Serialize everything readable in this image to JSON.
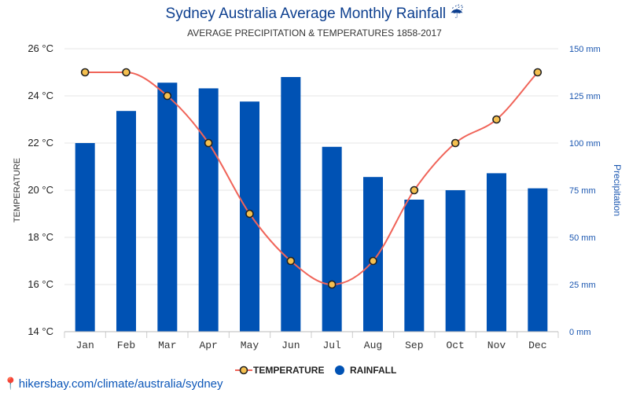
{
  "header": {
    "title": "Sydney Australia Average Monthly Rainfall ☔",
    "subtitle": "AVERAGE PRECIPITATION & TEMPERATURES 1858-2017"
  },
  "footer": {
    "source_text": "hikersbay.com/climate/australia/sydney"
  },
  "colors": {
    "title": "#0d3f8f",
    "bar": "#0052b4",
    "line": "#f06459",
    "marker_fill": "#f5c04f",
    "marker_stroke": "#222222",
    "right_axis": "#1a56b0",
    "grid": "#e6e6e6"
  },
  "chart_data": {
    "type": "bar",
    "title": "Sydney Australia Average Monthly Rainfall ☔",
    "subtitle": "AVERAGE PRECIPITATION & TEMPERATURES 1858-2017",
    "categories": [
      "Jan",
      "Feb",
      "Mar",
      "Apr",
      "May",
      "Jun",
      "Jul",
      "Aug",
      "Sep",
      "Oct",
      "Nov",
      "Dec"
    ],
    "series": [
      {
        "name": "TEMPERATURE",
        "type": "line",
        "axis": "left",
        "values": [
          25,
          25,
          24,
          22,
          19,
          17,
          16,
          17,
          20,
          22,
          23,
          25
        ]
      },
      {
        "name": "RAINFALL",
        "type": "bar",
        "axis": "right",
        "values": [
          100,
          117,
          132,
          129,
          122,
          135,
          98,
          82,
          70,
          75,
          84,
          76
        ]
      }
    ],
    "left_axis": {
      "label": "TEMPERATURE",
      "ylim": [
        14,
        26
      ],
      "ticks": [
        "14 °C",
        "16 °C",
        "18 °C",
        "20 °C",
        "22 °C",
        "24 °C",
        "26 °C"
      ]
    },
    "right_axis": {
      "label": "Precipitation",
      "ylim": [
        0,
        150
      ],
      "ticks": [
        "0 mm",
        "25 mm",
        "50 mm",
        "75 mm",
        "100 mm",
        "125 mm",
        "150 mm"
      ]
    },
    "grid": true,
    "legend": {
      "placement": "bottom-center",
      "items": [
        "TEMPERATURE",
        "RAINFALL"
      ]
    }
  }
}
